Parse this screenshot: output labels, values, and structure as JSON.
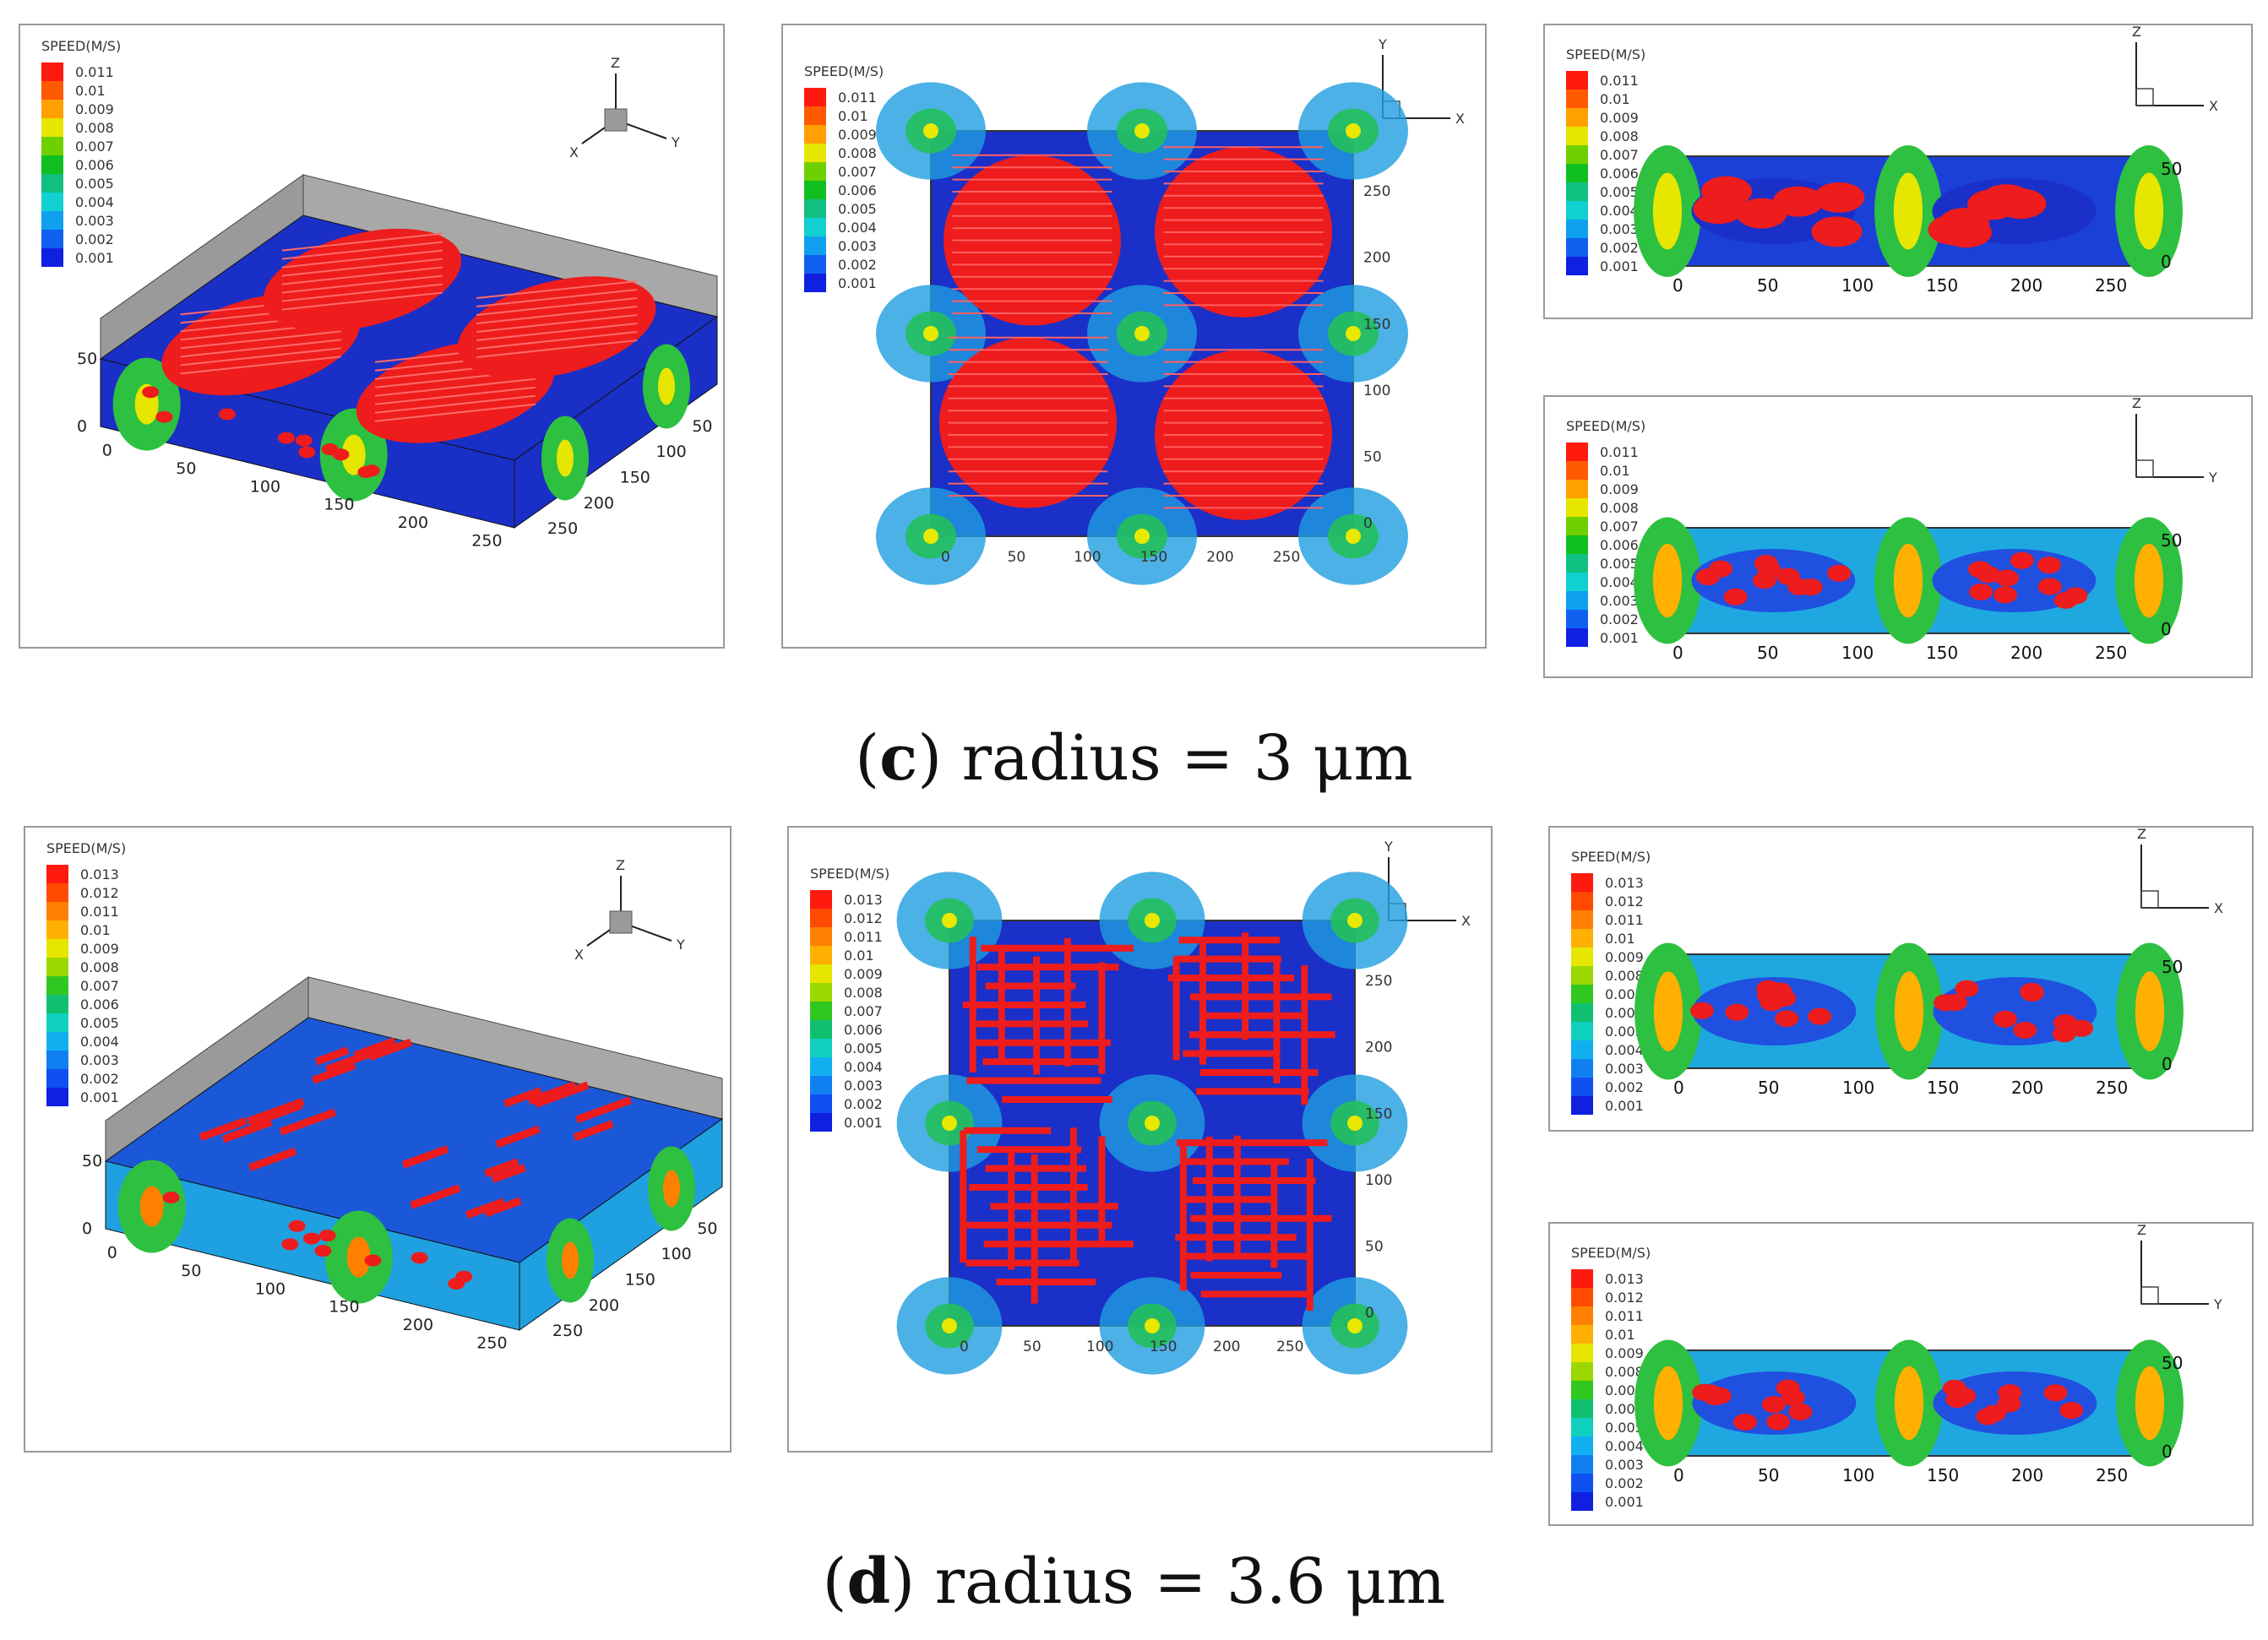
{
  "legend_title": "SPEED(M/S)",
  "legend_c": [
    "0.011",
    "0.01",
    "0.009",
    "0.008",
    "0.007",
    "0.006",
    "0.005",
    "0.004",
    "0.003",
    "0.002",
    "0.001"
  ],
  "legend_d": [
    "0.013",
    "0.012",
    "0.011",
    "0.01",
    "0.009",
    "0.008",
    "0.007",
    "0.006",
    "0.005",
    "0.004",
    "0.003",
    "0.002",
    "0.001"
  ],
  "legend_colors_c": [
    "#ff1a10",
    "#ff5a00",
    "#ffa000",
    "#e6e600",
    "#6fd000",
    "#10c020",
    "#10c080",
    "#10d0d0",
    "#10a0f0",
    "#1060f0",
    "#1020e0"
  ],
  "legend_colors_d": [
    "#ff1a10",
    "#ff4a00",
    "#ff8000",
    "#ffb000",
    "#e6e600",
    "#9ad800",
    "#30c820",
    "#10c070",
    "#10d0c0",
    "#10b0f0",
    "#1080f0",
    "#1050f0",
    "#1020e0"
  ],
  "axis_labels": {
    "x": "X",
    "y": "Y",
    "z": "Z"
  },
  "ticks_xy": [
    "0",
    "50",
    "100",
    "150",
    "200",
    "250"
  ],
  "ticks_z": [
    "0",
    "50"
  ],
  "caption_c": {
    "letter": "c",
    "rest": " radius = 3 μm",
    "open": "(",
    "close": ")"
  },
  "caption_d": {
    "letter": "d",
    "rest": " radius = 3.6 μm",
    "open": "(",
    "close": ")"
  }
}
